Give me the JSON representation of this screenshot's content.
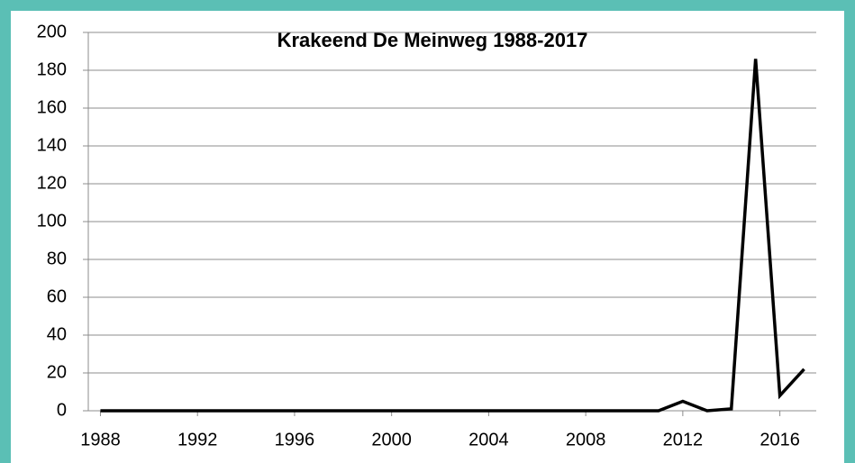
{
  "chart_data": {
    "type": "line",
    "title": "Krakeend De Meinweg 1988-2017",
    "x": [
      1988,
      1989,
      1990,
      1991,
      1992,
      1993,
      1994,
      1995,
      1996,
      1997,
      1998,
      1999,
      2000,
      2001,
      2002,
      2003,
      2004,
      2005,
      2006,
      2007,
      2008,
      2009,
      2010,
      2011,
      2012,
      2013,
      2014,
      2015,
      2016,
      2017
    ],
    "series": [
      {
        "name": "Krakeend",
        "color": "#000000",
        "values": [
          0,
          0,
          0,
          0,
          0,
          0,
          0,
          0,
          0,
          0,
          0,
          0,
          0,
          0,
          0,
          0,
          0,
          0,
          0,
          0,
          0,
          0,
          0,
          0,
          5,
          0,
          1,
          186,
          8,
          22
        ]
      }
    ],
    "xlim": [
      1987.5,
      2017.5
    ],
    "xticks": [
      1988,
      1992,
      1996,
      2000,
      2004,
      2008,
      2012,
      2016
    ],
    "ylim": [
      0,
      200
    ],
    "yticks": [
      0,
      20,
      40,
      60,
      80,
      100,
      120,
      140,
      160,
      180,
      200
    ],
    "grid": true
  }
}
